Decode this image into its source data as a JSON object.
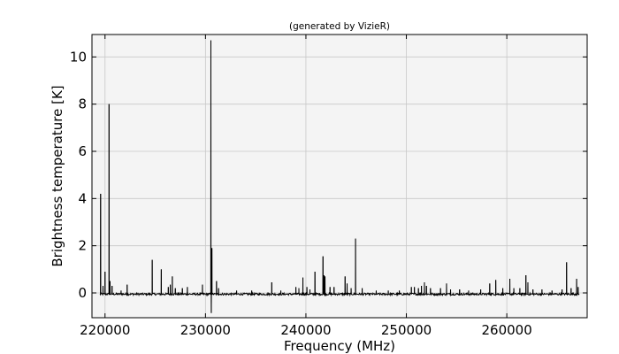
{
  "chart_data": {
    "type": "line",
    "title": "(generated by VizieR)",
    "xlabel": "Frequency (MHz)",
    "ylabel": "Brightness temperature [K]",
    "xlim": [
      218700,
      268000
    ],
    "ylim": [
      -1.05,
      10.95
    ],
    "xticks": [
      220000,
      230000,
      240000,
      250000,
      260000
    ],
    "xtick_labels": [
      "220000",
      "230000",
      "240000",
      "250000",
      "260000"
    ],
    "yticks": [
      0,
      2,
      4,
      6,
      8,
      10
    ],
    "ytick_labels": [
      "0",
      "2",
      "4",
      "6",
      "8",
      "10"
    ],
    "grid": true,
    "colors": {
      "line": "#000000",
      "plot_bg": "#f4f4f4",
      "grid": "#c8c8c8",
      "frame": "#000000"
    },
    "baseline": {
      "x_start": 219500,
      "x_end": 267200,
      "level": -0.05
    },
    "series": [
      {
        "peaks": [
          [
            219560,
            4.2
          ],
          [
            219800,
            0.3
          ],
          [
            220000,
            0.9
          ],
          [
            220400,
            8.0
          ],
          [
            220500,
            0.5
          ],
          [
            220700,
            0.3
          ],
          [
            221600,
            0.1
          ],
          [
            222200,
            0.35
          ],
          [
            224700,
            1.4
          ],
          [
            225600,
            1.0
          ],
          [
            226300,
            0.25
          ],
          [
            226700,
            0.7
          ],
          [
            226500,
            0.35
          ],
          [
            227000,
            0.2
          ],
          [
            227700,
            0.2
          ],
          [
            228200,
            0.25
          ],
          [
            229700,
            0.35
          ],
          [
            230540,
            10.7
          ],
          [
            230580,
            -0.85
          ],
          [
            230640,
            1.9
          ],
          [
            231100,
            0.5
          ],
          [
            231300,
            0.2
          ],
          [
            233100,
            0.1
          ],
          [
            234600,
            0.1
          ],
          [
            236600,
            0.45
          ],
          [
            237500,
            0.1
          ],
          [
            239000,
            0.25
          ],
          [
            239300,
            0.2
          ],
          [
            239700,
            0.65
          ],
          [
            240100,
            0.25
          ],
          [
            240400,
            0.15
          ],
          [
            240900,
            0.9
          ],
          [
            241700,
            1.55
          ],
          [
            241800,
            0.75
          ],
          [
            241900,
            0.7
          ],
          [
            242400,
            0.25
          ],
          [
            242800,
            0.25
          ],
          [
            243900,
            0.7
          ],
          [
            244100,
            0.4
          ],
          [
            244500,
            0.2
          ],
          [
            244940,
            2.3
          ],
          [
            245600,
            0.2
          ],
          [
            247000,
            0.1
          ],
          [
            248200,
            0.1
          ],
          [
            249300,
            0.1
          ],
          [
            250500,
            0.25
          ],
          [
            250800,
            0.25
          ],
          [
            251200,
            0.2
          ],
          [
            251500,
            0.3
          ],
          [
            251800,
            0.45
          ],
          [
            252000,
            0.3
          ],
          [
            252400,
            0.2
          ],
          [
            253400,
            0.2
          ],
          [
            254000,
            0.4
          ],
          [
            254400,
            0.15
          ],
          [
            255300,
            0.15
          ],
          [
            256200,
            0.1
          ],
          [
            257400,
            0.15
          ],
          [
            258300,
            0.4
          ],
          [
            258900,
            0.55
          ],
          [
            259600,
            0.2
          ],
          [
            260300,
            0.6
          ],
          [
            260700,
            0.2
          ],
          [
            261300,
            0.2
          ],
          [
            261900,
            0.75
          ],
          [
            262100,
            0.45
          ],
          [
            262600,
            0.15
          ],
          [
            263500,
            0.15
          ],
          [
            264500,
            0.1
          ],
          [
            265500,
            0.15
          ],
          [
            265950,
            1.3
          ],
          [
            266400,
            0.2
          ],
          [
            266950,
            0.6
          ],
          [
            267100,
            0.25
          ]
        ]
      }
    ]
  }
}
